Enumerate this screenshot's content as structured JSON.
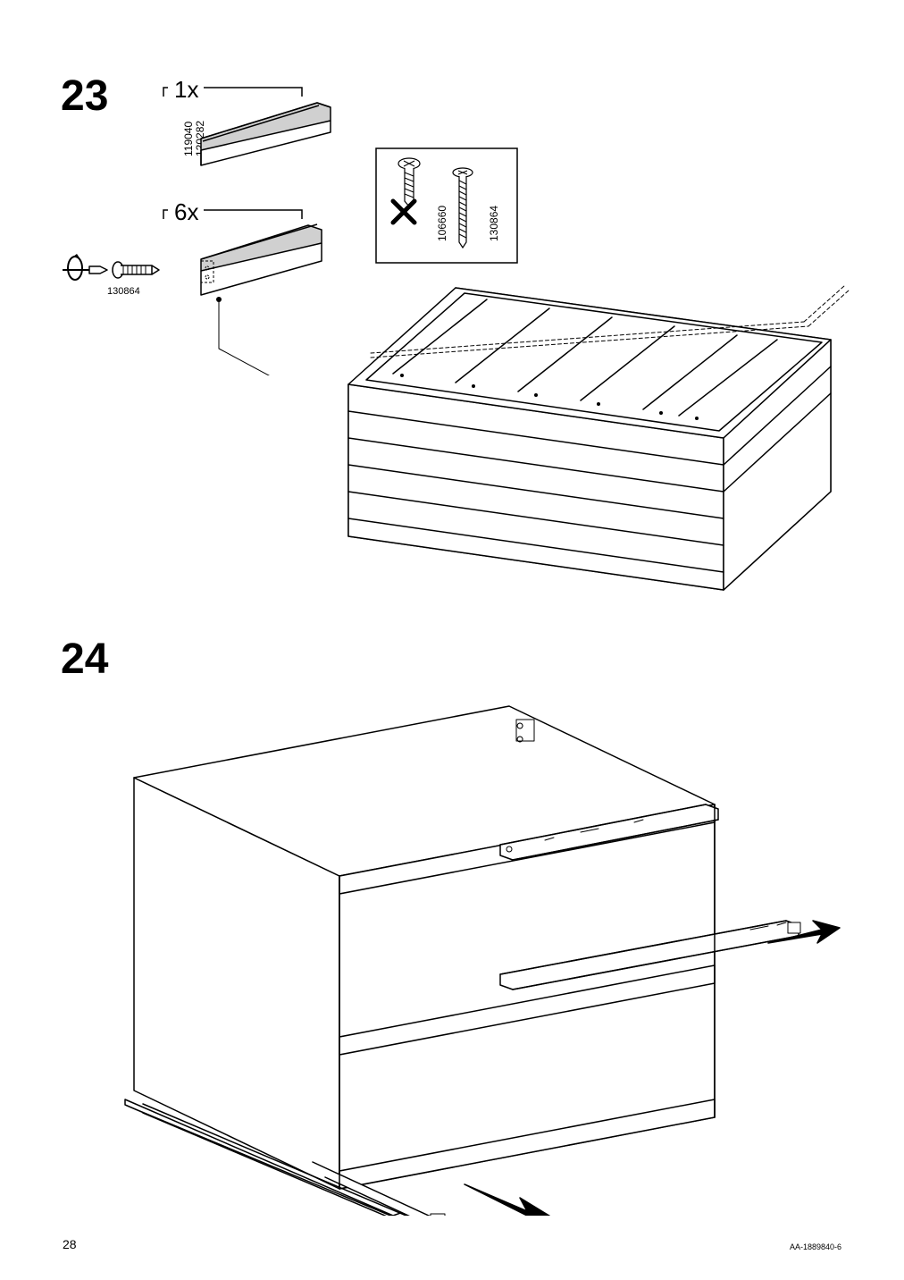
{
  "page": {
    "number": "28",
    "doc_ref": "AA-1889840-6"
  },
  "steps": {
    "step23": {
      "number": "23",
      "part1_qty": "1x",
      "part1_codes": "119040\n120282",
      "part2_qty": "6x",
      "part2_code": "130864",
      "wrong_screw_code": "106660",
      "right_screw_code": "130864"
    },
    "step24": {
      "number": "24"
    }
  },
  "style": {
    "stroke": "#000000",
    "fill_light": "#f5f5f5",
    "fill_grey": "#c8c8c8",
    "background": "#ffffff"
  }
}
